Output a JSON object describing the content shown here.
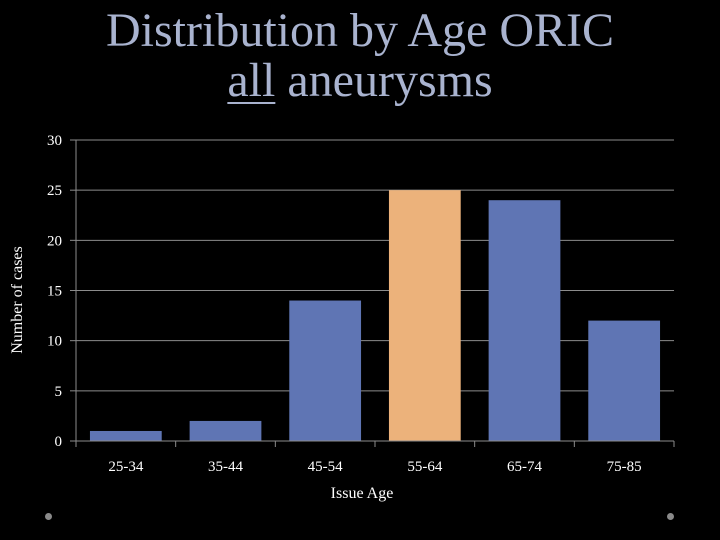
{
  "title": {
    "line1": "Distribution by Age ORIC",
    "line2_underlined": "all",
    "line2_rest": " aneurysms"
  },
  "colors": {
    "background": "#000000",
    "title": "#a9b3cf",
    "bar_default": "#5f75b4",
    "bar_highlight": "#ecb27b",
    "grid": "#8c8c8c",
    "text": "#ffffff"
  },
  "chart_data": {
    "type": "bar",
    "categories": [
      "25-34",
      "35-44",
      "45-54",
      "55-64",
      "65-74",
      "75-85"
    ],
    "values": [
      1,
      2,
      14,
      25,
      24,
      12
    ],
    "highlight_index": 3,
    "xlabel": "Issue Age",
    "ylabel": "Number of cases",
    "ylim": [
      0,
      30
    ],
    "yticks": [
      0,
      5,
      10,
      15,
      20,
      25,
      30
    ],
    "grid": true,
    "legend": "none"
  }
}
